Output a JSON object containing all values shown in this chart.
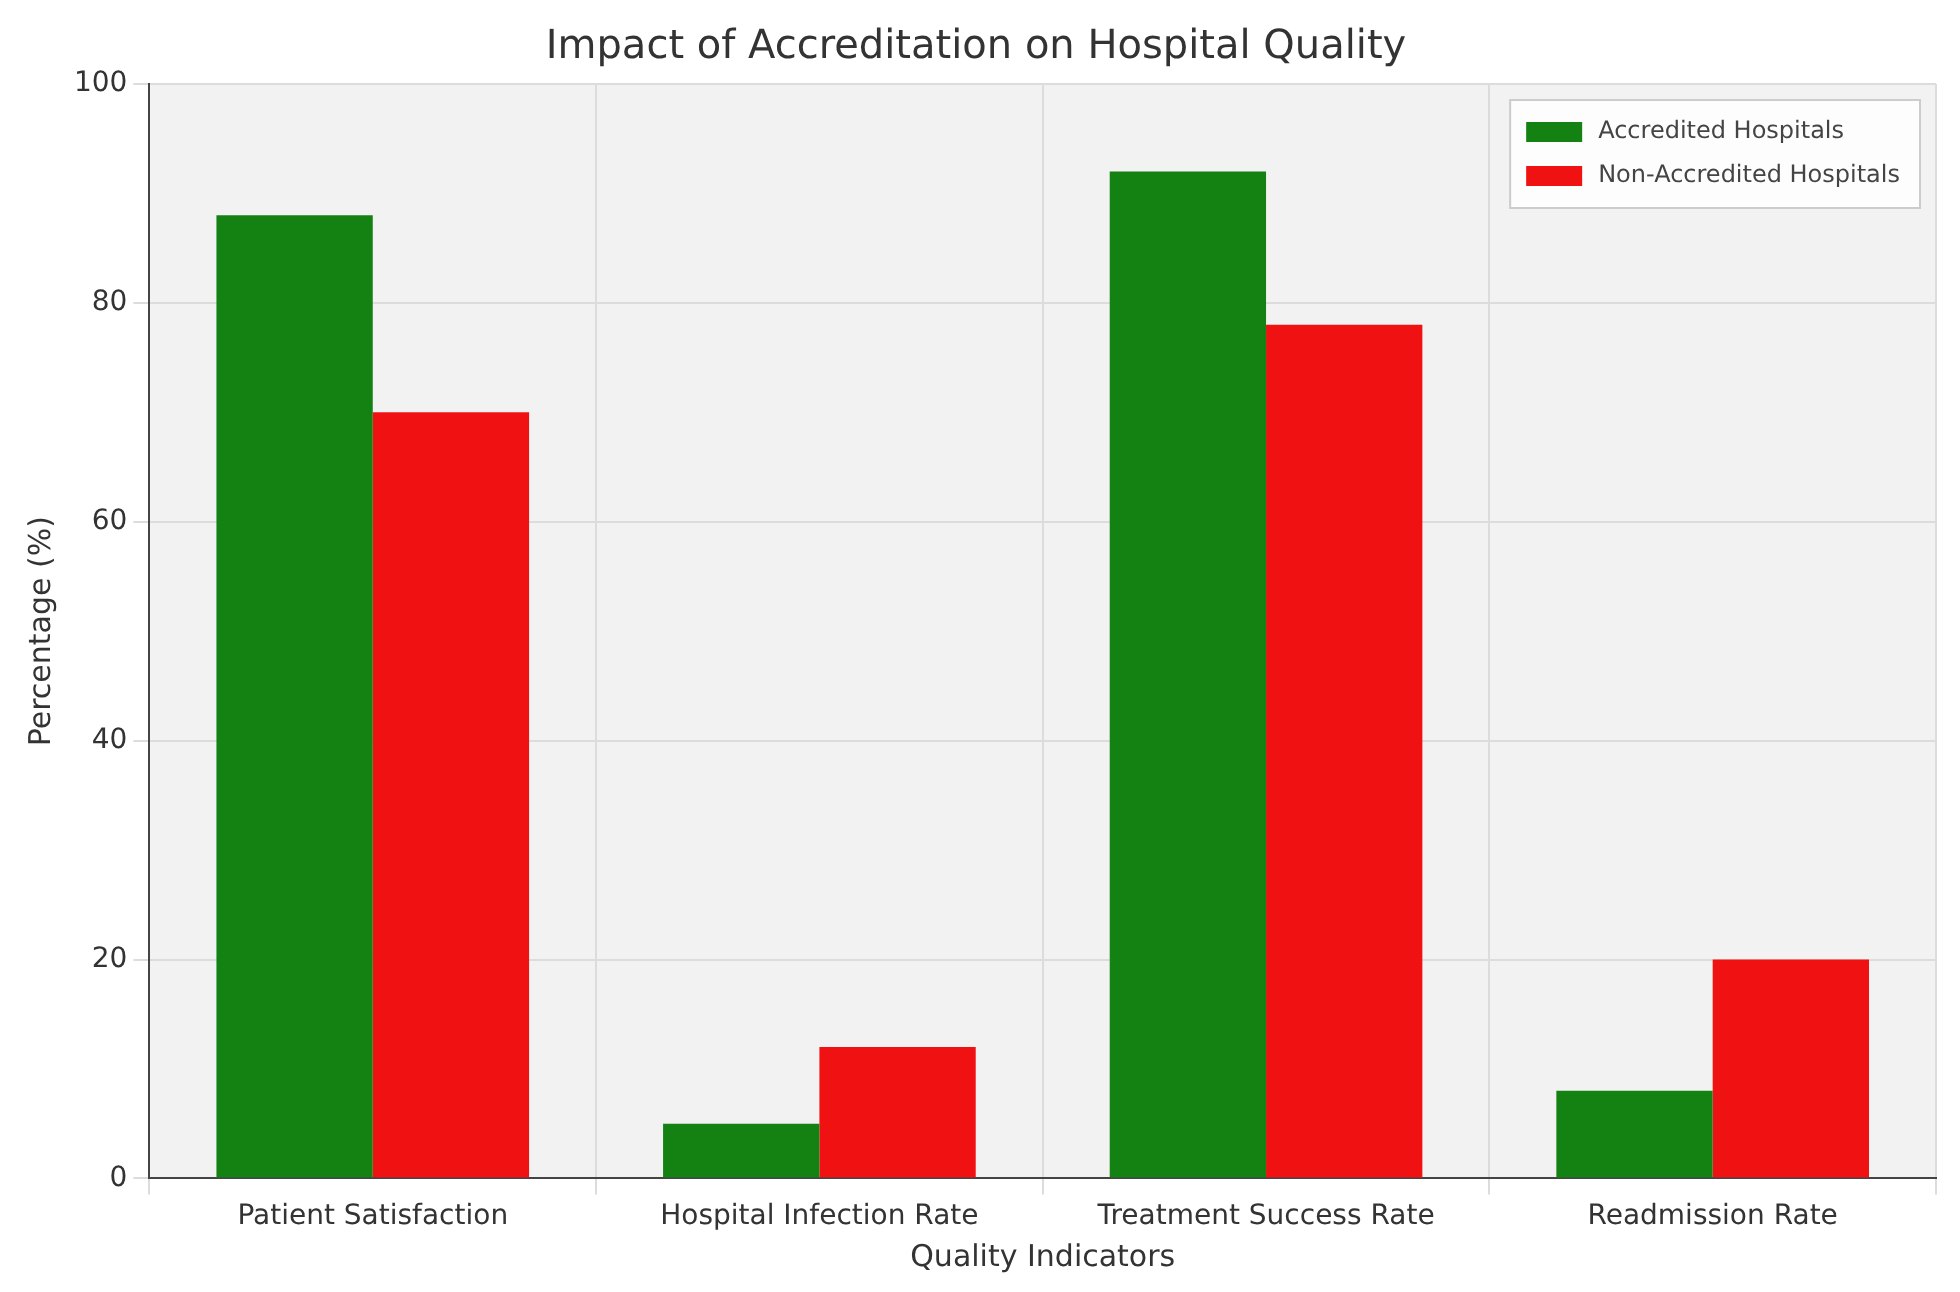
{
  "chart_data": {
    "type": "bar",
    "title": "Impact of Accreditation on Hospital Quality",
    "xlabel": "Quality Indicators",
    "ylabel": "Percentage (%)",
    "categories": [
      "Patient Satisfaction",
      "Hospital Infection Rate",
      "Treatment Success Rate",
      "Readmission Rate"
    ],
    "series": [
      {
        "name": "Accredited Hospitals",
        "color": "#138213",
        "values": [
          88,
          5,
          92,
          8
        ]
      },
      {
        "name": "Non-Accredited Hospitals",
        "color": "#f01212",
        "values": [
          70,
          12,
          78,
          20
        ]
      }
    ],
    "ylim": [
      0,
      100
    ],
    "yticks": [
      0,
      20,
      40,
      60,
      80,
      100
    ],
    "grid": true,
    "legend": "top right"
  }
}
